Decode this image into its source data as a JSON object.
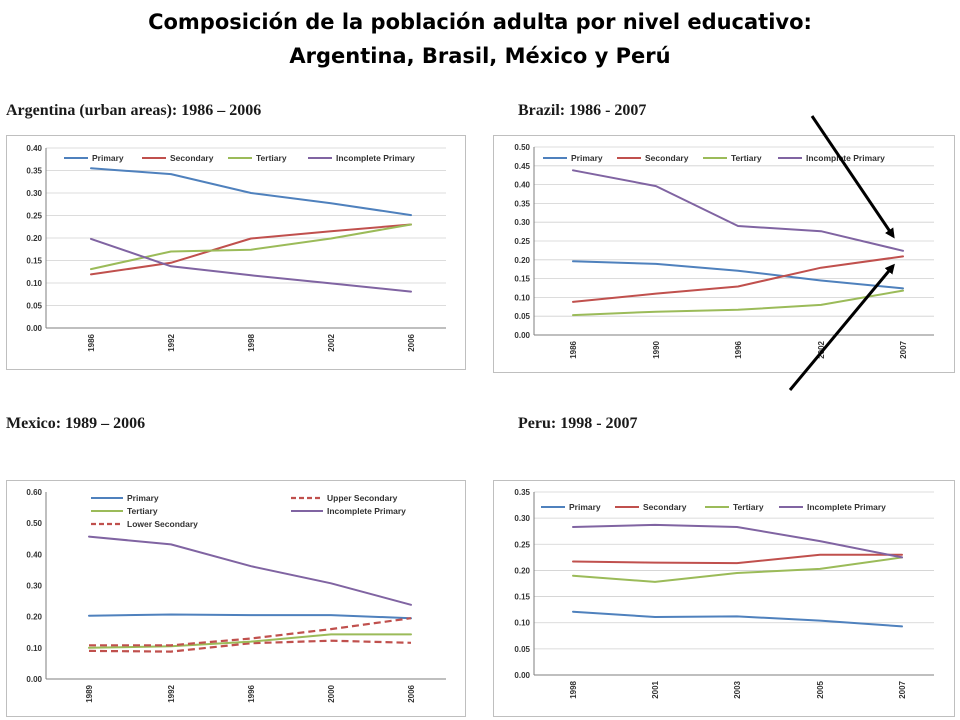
{
  "header": {
    "line1": "Composición de la población adulta por nivel educativo:",
    "line2": "Argentina, Brasil, México y Perú"
  },
  "colors": {
    "primary": "#4f81bd",
    "secondary": "#c0504d",
    "tertiary": "#9bbb59",
    "incomplete_primary": "#8064a2"
  },
  "chart_data": [
    {
      "type": "line",
      "title": "Argentina (urban areas): 1986 – 2006",
      "categories": [
        "1986",
        "1992",
        "1998",
        "2002",
        "2006"
      ],
      "ylim": [
        0,
        0.4
      ],
      "yticks": [
        "0.00",
        "0.05",
        "0.10",
        "0.15",
        "0.20",
        "0.25",
        "0.30",
        "0.35",
        "0.40"
      ],
      "grid": true,
      "legend": "top",
      "series": [
        {
          "name": "Primary",
          "values": [
            0.355,
            0.342,
            0.3,
            0.277,
            0.251
          ],
          "color": "#4f81bd",
          "dash": false
        },
        {
          "name": "Secondary",
          "values": [
            0.119,
            0.145,
            0.199,
            0.215,
            0.23
          ],
          "color": "#c0504d",
          "dash": false
        },
        {
          "name": "Tertiary",
          "values": [
            0.131,
            0.17,
            0.174,
            0.199,
            0.23
          ],
          "color": "#9bbb59",
          "dash": false
        },
        {
          "name": "Incomplete Primary",
          "values": [
            0.198,
            0.137,
            0.117,
            0.099,
            0.081
          ],
          "color": "#8064a2",
          "dash": false
        }
      ]
    },
    {
      "type": "line",
      "title": "Brazil: 1986 - 2007",
      "categories": [
        "1986",
        "1990",
        "1996",
        "2002",
        "2007"
      ],
      "ylim": [
        0,
        0.5
      ],
      "yticks": [
        "0.00",
        "0.05",
        "0.10",
        "0.15",
        "0.20",
        "0.25",
        "0.30",
        "0.35",
        "0.40",
        "0.45",
        "0.50"
      ],
      "grid": true,
      "legend": "top",
      "series": [
        {
          "name": "Primary",
          "values": [
            0.196,
            0.189,
            0.171,
            0.145,
            0.124
          ],
          "color": "#4f81bd",
          "dash": false
        },
        {
          "name": "Secondary",
          "values": [
            0.088,
            0.11,
            0.129,
            0.179,
            0.209
          ],
          "color": "#c0504d",
          "dash": false
        },
        {
          "name": "Tertiary",
          "values": [
            0.053,
            0.062,
            0.067,
            0.08,
            0.118
          ],
          "color": "#9bbb59",
          "dash": false
        },
        {
          "name": "Incomplete Primary",
          "values": [
            0.438,
            0.396,
            0.29,
            0.276,
            0.224
          ],
          "color": "#8064a2",
          "dash": false
        }
      ]
    },
    {
      "type": "line",
      "title": "Mexico: 1989 – 2006",
      "categories": [
        "1989",
        "1992",
        "1996",
        "2000",
        "2006"
      ],
      "ylim": [
        0,
        0.6
      ],
      "yticks": [
        "0.00",
        "0.10",
        "0.20",
        "0.30",
        "0.40",
        "0.50",
        "0.60"
      ],
      "grid": false,
      "legend": "top",
      "series": [
        {
          "name": "Primary",
          "values": [
            0.203,
            0.207,
            0.205,
            0.205,
            0.195
          ],
          "color": "#4f81bd",
          "dash": false
        },
        {
          "name": "Upper Secondary",
          "values": [
            0.09,
            0.088,
            0.115,
            0.123,
            0.116
          ],
          "color": "#c0504d",
          "dash": true
        },
        {
          "name": "Tertiary",
          "values": [
            0.1,
            0.105,
            0.12,
            0.143,
            0.143
          ],
          "color": "#9bbb59",
          "dash": false
        },
        {
          "name": "Incomplete Primary",
          "values": [
            0.457,
            0.432,
            0.362,
            0.307,
            0.238
          ],
          "color": "#8064a2",
          "dash": false
        },
        {
          "name": "Lower Secondary",
          "values": [
            0.108,
            0.108,
            0.13,
            0.16,
            0.195
          ],
          "color": "#c0504d",
          "dash": true
        }
      ]
    },
    {
      "type": "line",
      "title": "Peru: 1998 - 2007",
      "categories": [
        "1998",
        "2001",
        "2003",
        "2005",
        "2007"
      ],
      "ylim": [
        0,
        0.35
      ],
      "yticks": [
        "0.00",
        "0.05",
        "0.10",
        "0.15",
        "0.20",
        "0.25",
        "0.30",
        "0.35"
      ],
      "grid": true,
      "legend": "top",
      "series": [
        {
          "name": "Primary",
          "values": [
            0.121,
            0.111,
            0.112,
            0.104,
            0.093
          ],
          "color": "#4f81bd",
          "dash": false
        },
        {
          "name": "Secondary",
          "values": [
            0.217,
            0.215,
            0.214,
            0.23,
            0.23
          ],
          "color": "#c0504d",
          "dash": false
        },
        {
          "name": "Tertiary",
          "values": [
            0.19,
            0.178,
            0.195,
            0.203,
            0.225
          ],
          "color": "#9bbb59",
          "dash": false
        },
        {
          "name": "Incomplete Primary",
          "values": [
            0.283,
            0.287,
            0.283,
            0.256,
            0.225
          ],
          "color": "#8064a2",
          "dash": false
        }
      ]
    }
  ]
}
